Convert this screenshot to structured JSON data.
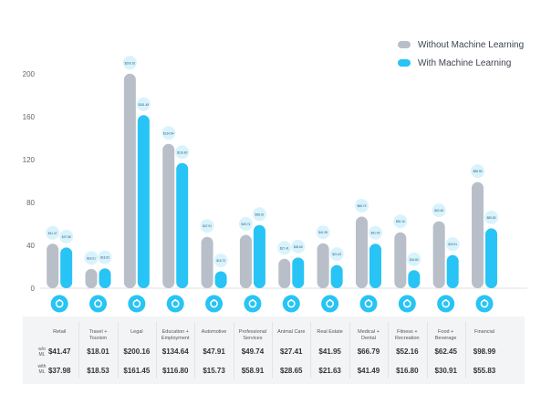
{
  "legend": {
    "without_label": "Without Machine Learning",
    "with_label": "With Machine Learning"
  },
  "colors": {
    "without": "#b8bfc9",
    "with": "#27c4f5",
    "icon_circle": "#27c4f5",
    "bubble": "#d9f3fd"
  },
  "table": {
    "row1_label": "w/o\nML",
    "row2_label": "with\nML"
  },
  "chart_data": {
    "type": "bar",
    "categories": [
      "Retail",
      "Travel +\nTourism",
      "Legal",
      "Education +\nEmployment",
      "Automotive",
      "Professional\nServices",
      "Animal Care",
      "Real Estate",
      "Medical +\nDental",
      "Fitness +\nRecreation",
      "Food +\nBeverage",
      "Financial"
    ],
    "category_icons": [
      "shopping-bag-icon",
      "palm-tree-icon",
      "scales-icon",
      "graduation-cap-icon",
      "car-icon",
      "briefcase-icon",
      "paw-icon",
      "house-icon",
      "tooth-icon",
      "heart-icon",
      "cutlery-icon",
      "bank-icon"
    ],
    "series": [
      {
        "name": "Without Machine Learning",
        "values": [
          41.47,
          18.01,
          200.16,
          134.64,
          47.91,
          49.74,
          27.41,
          41.95,
          66.79,
          52.16,
          62.45,
          98.99
        ],
        "labels": [
          "$41.47",
          "$18.01",
          "$200.16",
          "$134.64",
          "$47.91",
          "$49.74",
          "$27.41",
          "$41.95",
          "$66.79",
          "$52.16",
          "$62.45",
          "$98.99"
        ]
      },
      {
        "name": "With Machine Learning",
        "values": [
          37.98,
          18.53,
          161.45,
          116.8,
          15.73,
          58.91,
          28.65,
          21.63,
          41.49,
          16.8,
          30.91,
          55.83
        ],
        "labels": [
          "$37.98",
          "$18.53",
          "$161.45",
          "$116.80",
          "$15.73",
          "$58.91",
          "$28.65",
          "$21.63",
          "$41.49",
          "$16.80",
          "$30.91",
          "$55.83"
        ]
      }
    ],
    "yticks": [
      0,
      40,
      80,
      120,
      160,
      200
    ],
    "ylim": [
      0,
      200
    ],
    "grid": false,
    "legend_position": "top-right"
  }
}
